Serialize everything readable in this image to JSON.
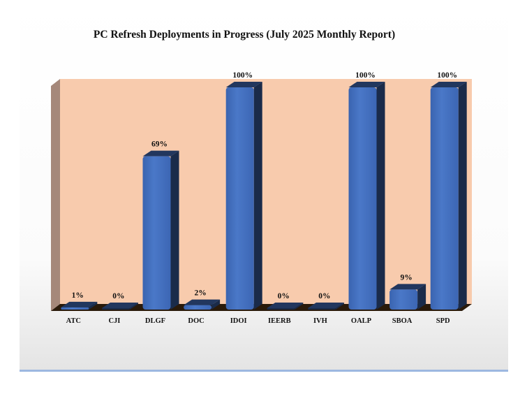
{
  "chart_data": {
    "type": "bar",
    "title": "PC Refresh Deployments in Progress (July 2025 Monthly Report)",
    "categories": [
      "ATC",
      "CJI",
      "DLGF",
      "DOC",
      "IDOI",
      "IEERB",
      "IVH",
      "OALP",
      "SBOA",
      "SPD"
    ],
    "values": [
      1,
      0,
      69,
      2,
      100,
      0,
      0,
      100,
      9,
      100
    ],
    "value_labels": [
      "1%",
      "0%",
      "69%",
      "2%",
      "100%",
      "0%",
      "0%",
      "100%",
      "9%",
      "100%"
    ],
    "ylim": [
      0,
      100
    ],
    "xlabel": "",
    "ylabel": "",
    "grid": false,
    "legend": "none",
    "colors": {
      "bar": "#4472C4",
      "bar_side": "#1A2B4A",
      "wall": "#F8CBAD",
      "side_wall": "#A5887A",
      "floor": "#2A1A0A"
    }
  }
}
